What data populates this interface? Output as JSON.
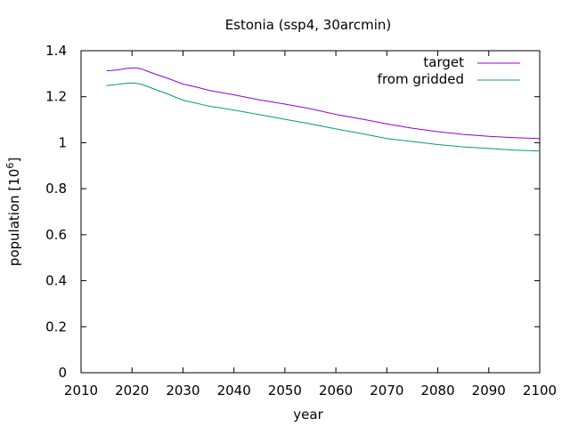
{
  "chart_data": {
    "type": "line",
    "title": "Estonia (ssp4, 30arcmin)",
    "xlabel": "year",
    "ylabel_main": "population [10",
    "ylabel_exp": "6",
    "ylabel_close": "]",
    "xlim": [
      2010,
      2100
    ],
    "ylim": [
      0,
      1.4
    ],
    "xticks": [
      2010,
      2020,
      2030,
      2040,
      2050,
      2060,
      2070,
      2080,
      2090,
      2100
    ],
    "xtick_labels": [
      "2010",
      "2020",
      "2030",
      "2040",
      "2050",
      "2060",
      "2070",
      "2080",
      "2090",
      "2100"
    ],
    "yticks": [
      0,
      0.2,
      0.4,
      0.6,
      0.8,
      1,
      1.2,
      1.4
    ],
    "ytick_labels": [
      "0",
      "0.2",
      "0.4",
      "0.6",
      "0.8",
      "1",
      "1.2",
      "1.4"
    ],
    "legend_position": "top-right",
    "grid": false,
    "series": [
      {
        "name": "target",
        "color": "#9400d3",
        "x": [
          2015,
          2016,
          2017,
          2018,
          2019,
          2020,
          2021,
          2022,
          2023,
          2025,
          2027,
          2030,
          2033,
          2035,
          2040,
          2045,
          2050,
          2055,
          2060,
          2065,
          2070,
          2075,
          2080,
          2085,
          2090,
          2095,
          2100
        ],
        "y": [
          1.313,
          1.314,
          1.316,
          1.32,
          1.323,
          1.325,
          1.325,
          1.32,
          1.311,
          1.295,
          1.28,
          1.255,
          1.24,
          1.228,
          1.208,
          1.186,
          1.168,
          1.148,
          1.123,
          1.103,
          1.082,
          1.063,
          1.048,
          1.036,
          1.028,
          1.022,
          1.018
        ]
      },
      {
        "name": "from gridded",
        "color": "#009e73",
        "x": [
          2015,
          2016,
          2017,
          2018,
          2019,
          2020,
          2021,
          2022,
          2023,
          2025,
          2027,
          2030,
          2033,
          2035,
          2040,
          2045,
          2050,
          2055,
          2060,
          2065,
          2070,
          2075,
          2080,
          2085,
          2090,
          2095,
          2100
        ],
        "y": [
          1.248,
          1.251,
          1.253,
          1.256,
          1.259,
          1.26,
          1.258,
          1.253,
          1.245,
          1.228,
          1.212,
          1.185,
          1.17,
          1.159,
          1.142,
          1.122,
          1.102,
          1.082,
          1.06,
          1.04,
          1.018,
          1.005,
          0.992,
          0.982,
          0.975,
          0.968,
          0.964
        ]
      }
    ]
  }
}
